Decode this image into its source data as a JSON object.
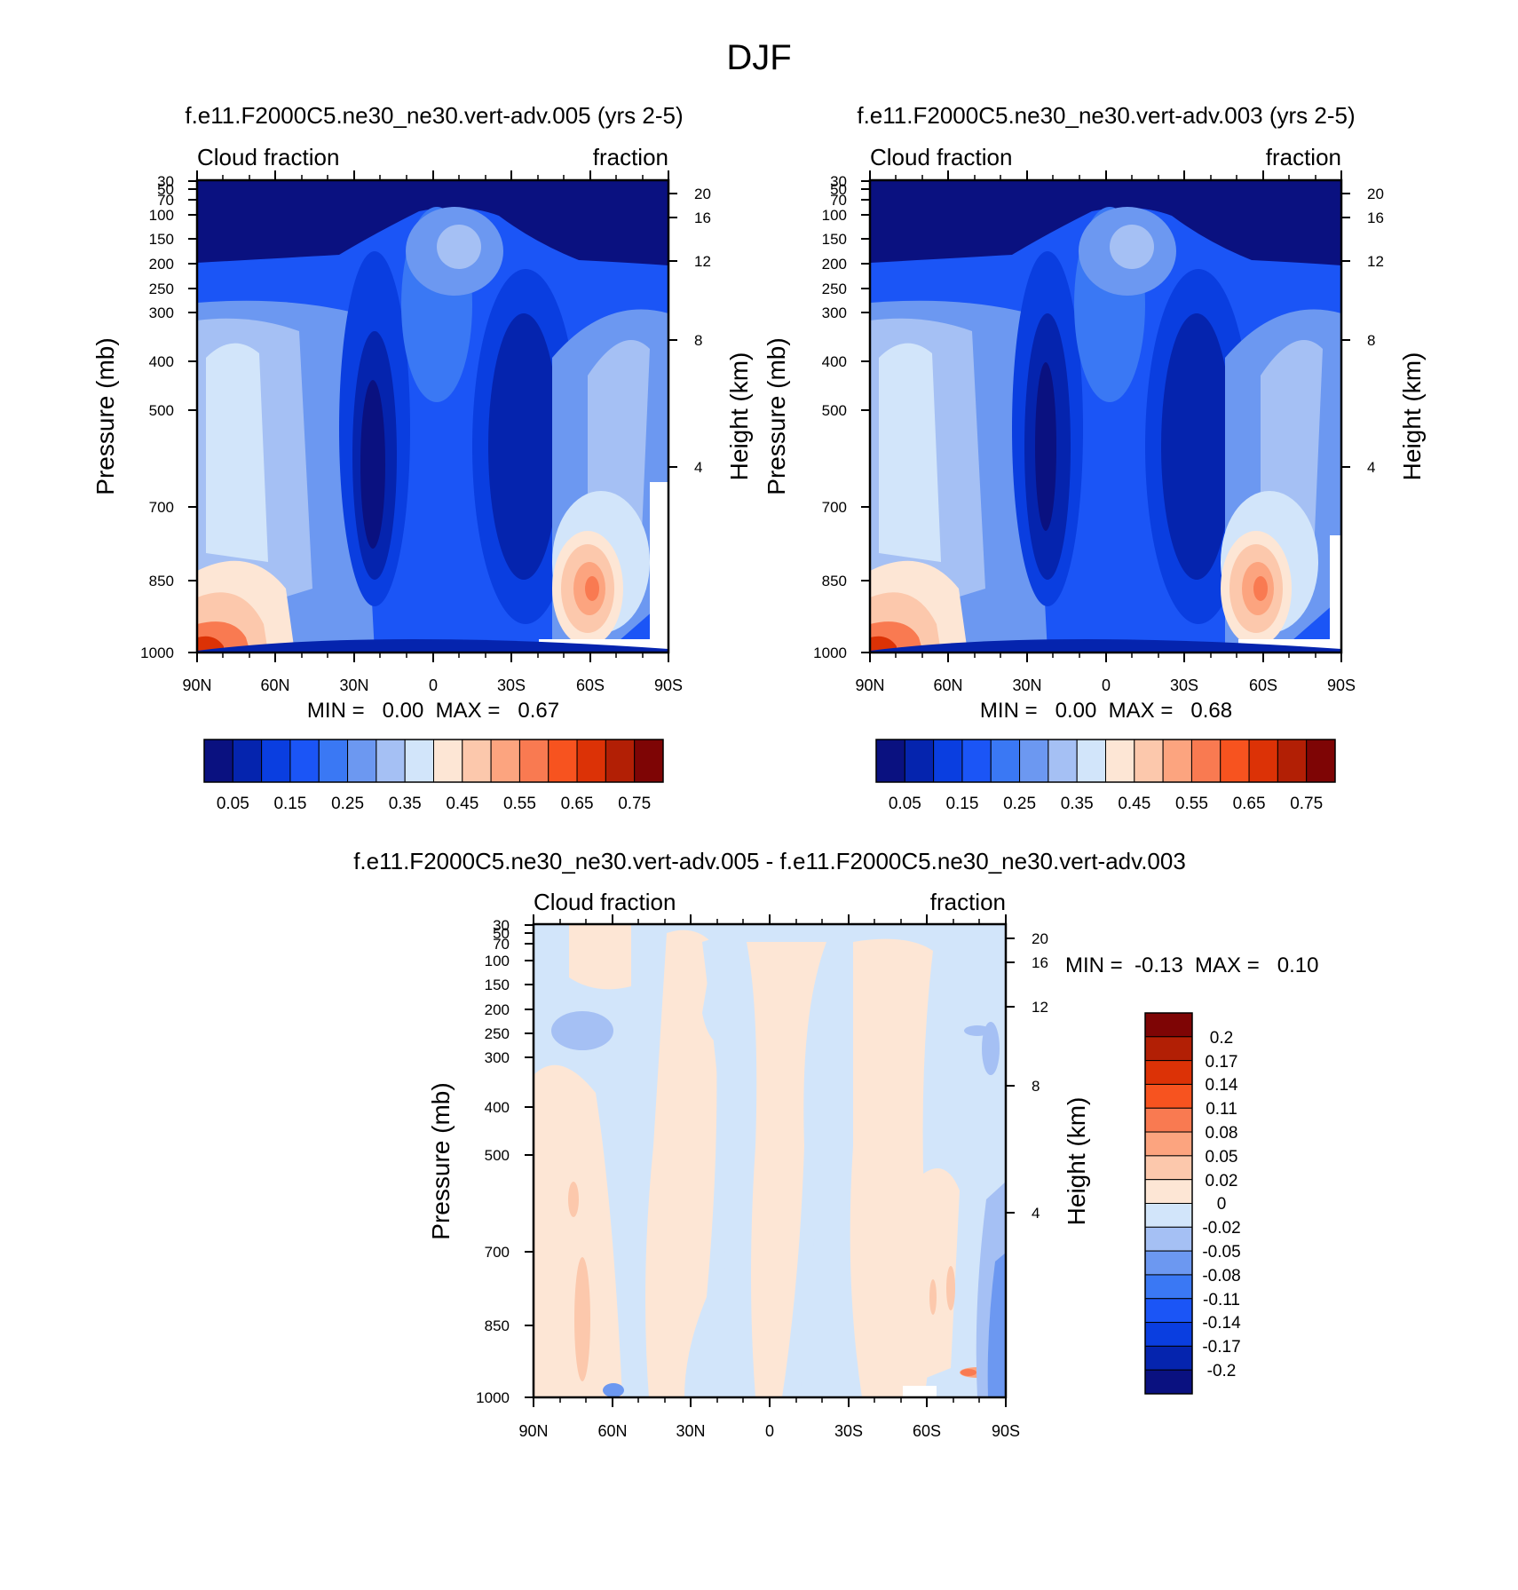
{
  "figure": {
    "title": "DJF"
  },
  "chart_data": [
    {
      "type": "heatmap",
      "title": "f.e11.F2000C5.ne30_ne30.vert-adv.005 (yrs 2-5)",
      "left_string": "Cloud fraction",
      "right_string": "fraction",
      "xlabel": "",
      "ylabel": "Pressure (mb)",
      "ylabel_right": "Height (km)",
      "x_ticks": [
        "90N",
        "60N",
        "30N",
        "0",
        "30S",
        "60S",
        "90S"
      ],
      "y_ticks": [
        "30",
        "50",
        "70",
        "100",
        "150",
        "200",
        "250",
        "300",
        "400",
        "500",
        "700",
        "850",
        "1000"
      ],
      "height_ticks": [
        "20",
        "16",
        "12",
        "8",
        "4"
      ],
      "xlim": [
        90,
        -90
      ],
      "ylim": [
        1000,
        30
      ],
      "y_scale": "log",
      "min_max": "MIN =   0.00  MAX =   0.67",
      "colorbar": {
        "orientation": "horizontal",
        "levels": [
          "0.05",
          "0.15",
          "0.25",
          "0.35",
          "0.45",
          "0.55",
          "0.65",
          "0.75"
        ],
        "colors": [
          "#0a1180",
          "#0524ae",
          "#0a3ee0",
          "#1b55f6",
          "#3a78f4",
          "#6c98f1",
          "#a5c0f4",
          "#d2e5fa",
          "#fde6d5",
          "#fcc8ac",
          "#fca47f",
          "#f97a51",
          "#f7531f",
          "#dc3206",
          "#b21f05",
          "#7e0505"
        ]
      }
    },
    {
      "type": "heatmap",
      "title": "f.e11.F2000C5.ne30_ne30.vert-adv.003 (yrs 2-5)",
      "left_string": "Cloud fraction",
      "right_string": "fraction",
      "xlabel": "",
      "ylabel": "Pressure (mb)",
      "ylabel_right": "Height (km)",
      "x_ticks": [
        "90N",
        "60N",
        "30N",
        "0",
        "30S",
        "60S",
        "90S"
      ],
      "y_ticks": [
        "30",
        "50",
        "70",
        "100",
        "150",
        "200",
        "250",
        "300",
        "400",
        "500",
        "700",
        "850",
        "1000"
      ],
      "height_ticks": [
        "20",
        "16",
        "12",
        "8",
        "4"
      ],
      "xlim": [
        90,
        -90
      ],
      "ylim": [
        1000,
        30
      ],
      "y_scale": "log",
      "min_max": "MIN =   0.00  MAX =   0.68",
      "colorbar": {
        "orientation": "horizontal",
        "levels": [
          "0.05",
          "0.15",
          "0.25",
          "0.35",
          "0.45",
          "0.55",
          "0.65",
          "0.75"
        ],
        "colors": [
          "#0a1180",
          "#0524ae",
          "#0a3ee0",
          "#1b55f6",
          "#3a78f4",
          "#6c98f1",
          "#a5c0f4",
          "#d2e5fa",
          "#fde6d5",
          "#fcc8ac",
          "#fca47f",
          "#f97a51",
          "#f7531f",
          "#dc3206",
          "#b21f05",
          "#7e0505"
        ]
      }
    },
    {
      "type": "heatmap",
      "title": "f.e11.F2000C5.ne30_ne30.vert-adv.005 - f.e11.F2000C5.ne30_ne30.vert-adv.003",
      "left_string": "Cloud fraction",
      "right_string": "fraction",
      "xlabel": "",
      "ylabel": "Pressure (mb)",
      "ylabel_right": "Height (km)",
      "x_ticks": [
        "90N",
        "60N",
        "30N",
        "0",
        "30S",
        "60S",
        "90S"
      ],
      "y_ticks": [
        "30",
        "50",
        "70",
        "100",
        "150",
        "200",
        "250",
        "300",
        "400",
        "500",
        "700",
        "850",
        "1000"
      ],
      "height_ticks": [
        "20",
        "16",
        "12",
        "8",
        "4"
      ],
      "xlim": [
        90,
        -90
      ],
      "ylim": [
        1000,
        30
      ],
      "y_scale": "log",
      "min_max": "MIN =  -0.13  MAX =   0.10",
      "colorbar": {
        "orientation": "vertical",
        "levels": [
          "0.2",
          "0.17",
          "0.14",
          "0.11",
          "0.08",
          "0.05",
          "0.02",
          "0",
          "-0.02",
          "-0.05",
          "-0.08",
          "-0.11",
          "-0.14",
          "-0.17",
          "-0.2"
        ],
        "colors": [
          "#7e0505",
          "#b21f05",
          "#dc3206",
          "#f7531f",
          "#f97a51",
          "#fca47f",
          "#fcc8ac",
          "#fde6d5",
          "#d2e5fa",
          "#a5c0f4",
          "#6c98f1",
          "#3a78f4",
          "#1b55f6",
          "#0a3ee0",
          "#0524ae",
          "#0a1180"
        ]
      }
    }
  ]
}
